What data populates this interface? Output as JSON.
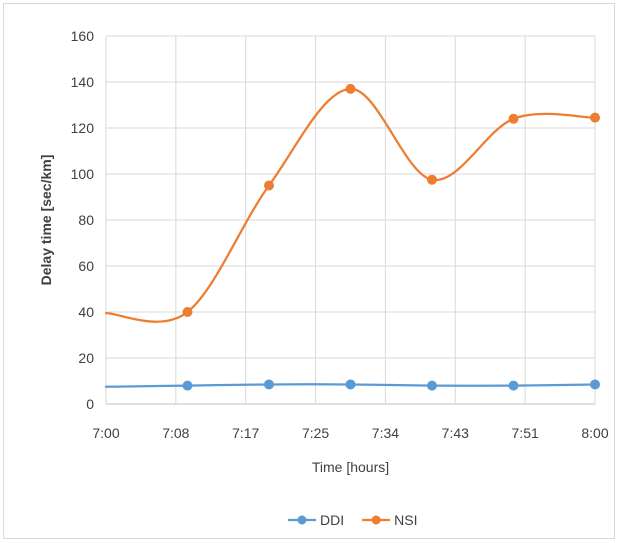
{
  "chart_data": {
    "type": "line",
    "title": "",
    "xlabel": "Time [hours]",
    "ylabel": "Delay time [sec/km]",
    "ylim": [
      0,
      160
    ],
    "yticks": [
      "0",
      "20",
      "40",
      "60",
      "80",
      "100",
      "120",
      "140",
      "160"
    ],
    "xticks": [
      "7:00",
      "7:08",
      "7:17",
      "7:25",
      "7:34",
      "7:43",
      "7:51",
      "8:00"
    ],
    "xlim": [
      "7:00",
      "8:00"
    ],
    "grid": true,
    "smooth": true,
    "legend_position": "bottom",
    "series": [
      {
        "name": "DDI",
        "color": "#5b9bd5",
        "x": [
          "7:00",
          "7:10",
          "7:20",
          "7:30",
          "7:40",
          "7:50",
          "8:00"
        ],
        "y": [
          7.5,
          8,
          8.5,
          8.5,
          8,
          8,
          8.5
        ],
        "markers": [
          false,
          true,
          true,
          true,
          true,
          true,
          true
        ]
      },
      {
        "name": "NSI",
        "color": "#ed7d31",
        "x": [
          "7:00",
          "7:10",
          "7:20",
          "7:30",
          "7:40",
          "7:50",
          "8:00"
        ],
        "y": [
          39.5,
          40,
          95,
          137,
          97.5,
          124,
          124.5
        ],
        "markers": [
          false,
          true,
          true,
          true,
          true,
          true,
          true
        ]
      }
    ]
  }
}
